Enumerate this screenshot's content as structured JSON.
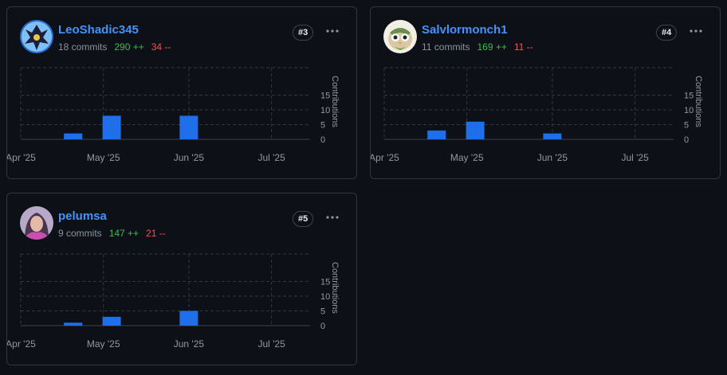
{
  "contributors": [
    {
      "username": "LeoShadic345",
      "commits": "18 commits",
      "additions": "290 ++",
      "deletions": "34 --",
      "rank": "#3",
      "chart_data": {
        "type": "bar",
        "x_tick_labels": [
          "Apr '25",
          "May '25",
          "Jun '25",
          "Jul '25"
        ],
        "categories": [
          "Apr 20 '25",
          "May 4 '25",
          "Jun 1 '25"
        ],
        "values": [
          2,
          8,
          8
        ],
        "ylabel": "Contributions",
        "y_ticks": [
          0,
          5,
          10,
          15
        ],
        "ylim": [
          0,
          23
        ],
        "grid": true
      }
    },
    {
      "username": "Salvlormonch1",
      "commits": "11 commits",
      "additions": "169 ++",
      "deletions": "11 --",
      "rank": "#4",
      "chart_data": {
        "type": "bar",
        "x_tick_labels": [
          "Apr '25",
          "May '25",
          "Jun '25",
          "Jul '25"
        ],
        "categories": [
          "Apr 20 '25",
          "May 4 '25",
          "Jun 1 '25"
        ],
        "values": [
          3,
          6,
          2
        ],
        "ylabel": "Contributions",
        "y_ticks": [
          0,
          5,
          10,
          15
        ],
        "ylim": [
          0,
          23
        ],
        "grid": true
      }
    },
    {
      "username": "pelumsa",
      "commits": "9 commits",
      "additions": "147 ++",
      "deletions": "21 --",
      "rank": "#5",
      "chart_data": {
        "type": "bar",
        "x_tick_labels": [
          "Apr '25",
          "May '25",
          "Jun '25",
          "Jul '25"
        ],
        "categories": [
          "Apr 20 '25",
          "May 4 '25",
          "Jun 1 '25"
        ],
        "values": [
          1,
          3,
          5
        ],
        "ylabel": "Contributions",
        "y_ticks": [
          0,
          5,
          10,
          15
        ],
        "ylim": [
          0,
          23
        ],
        "grid": true
      }
    }
  ],
  "colors": {
    "bar": "#1f6feb",
    "link": "#4493f8",
    "additions": "#3fb950",
    "deletions": "#f85149",
    "muted": "#8b949e",
    "grid": "#30363d"
  },
  "icons": {
    "more": "kebab-horizontal-icon"
  }
}
